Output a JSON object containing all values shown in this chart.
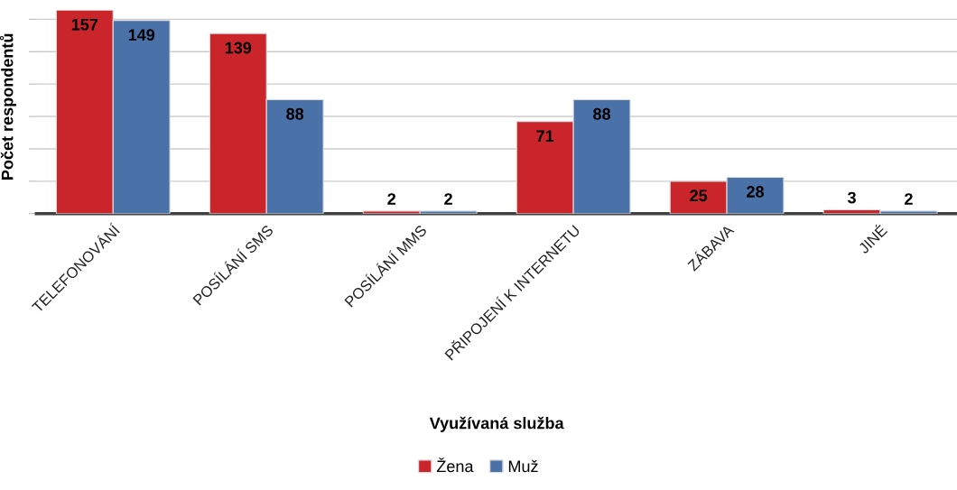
{
  "chart_data": {
    "type": "bar",
    "xlabel": "Využívaná služba",
    "ylabel": "Počet respondentů",
    "categories": [
      "TELEFONOVÁNÍ",
      "POSÍLÁNÍ SMS",
      "POSÍLÁNÍ MMS",
      "PŘIPOJENÍ K INTERNETU",
      "ZÁBAVA",
      "JINÉ"
    ],
    "series": [
      {
        "name": "Žena",
        "color": "#c9252b",
        "values": [
          157,
          139,
          2,
          71,
          25,
          3
        ]
      },
      {
        "name": "Muž",
        "color": "#4a72a8",
        "values": [
          149,
          88,
          2,
          88,
          28,
          2
        ]
      }
    ],
    "tick_labels": "x",
    "grid": "y",
    "legend": "bottom",
    "data_labels": true
  }
}
